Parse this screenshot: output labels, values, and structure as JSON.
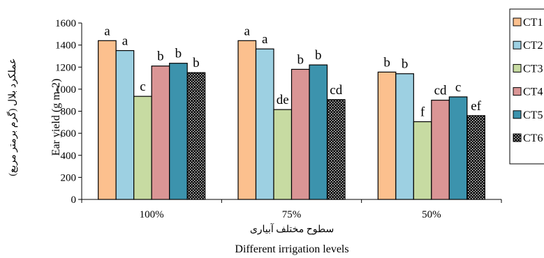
{
  "chart_data": {
    "type": "bar",
    "ylabel": "Ear yield (g m-2)",
    "ylabel_fa": "عملکرد بلال (گرم برمتر مربع)",
    "xlabel": "Different irrigation levels",
    "xlabel_fa": "سطوح مختلف آبیاری",
    "categories": [
      "100%",
      "75%",
      "50%"
    ],
    "ylim": [
      0,
      1600
    ],
    "yticks": [
      0,
      200,
      400,
      600,
      800,
      1000,
      1200,
      1400,
      1600
    ],
    "grid": false,
    "legend_position": "right",
    "series": [
      {
        "name": "CT1",
        "color": "#fcc08e",
        "values": [
          1440,
          1440,
          1155
        ],
        "letters": [
          "a",
          "a",
          "b"
        ]
      },
      {
        "name": "CT2",
        "color": "#9dd0e2",
        "values": [
          1350,
          1365,
          1140
        ],
        "letters": [
          "a",
          "a",
          "b"
        ]
      },
      {
        "name": "CT3",
        "color": "#c7dba2",
        "values": [
          935,
          815,
          705
        ],
        "letters": [
          "c",
          "de",
          "f"
        ]
      },
      {
        "name": "CT4",
        "color": "#da9595",
        "values": [
          1210,
          1180,
          900
        ],
        "letters": [
          "b",
          "b",
          "cd"
        ]
      },
      {
        "name": "CT5",
        "color": "#3c93ad",
        "values": [
          1235,
          1220,
          930
        ],
        "letters": [
          "b",
          "b",
          "c"
        ]
      },
      {
        "name": "CT6",
        "color": "#2a2a2a",
        "pattern": "dots",
        "values": [
          1150,
          905,
          760
        ],
        "letters": [
          "b",
          "cd",
          "ef"
        ]
      }
    ]
  }
}
